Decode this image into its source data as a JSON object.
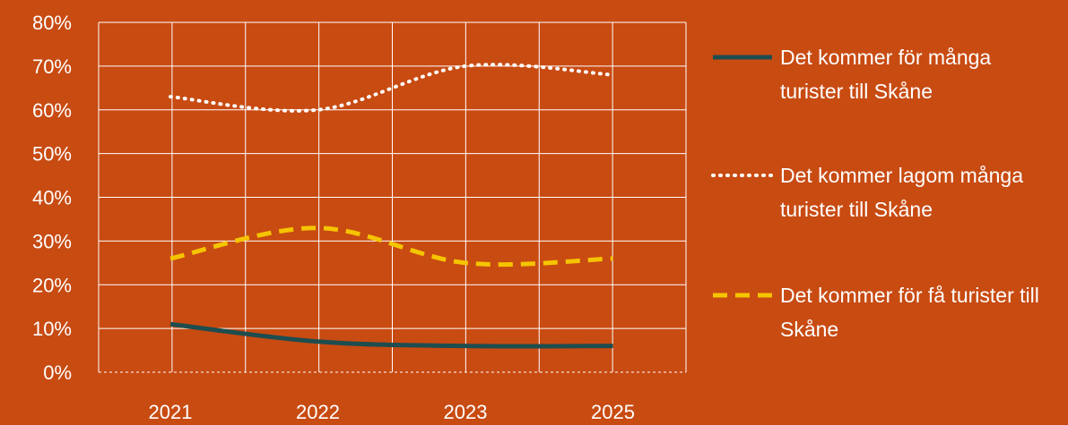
{
  "chart_data": {
    "type": "line",
    "categories": [
      "2021",
      "2022",
      "2023",
      "2025"
    ],
    "series": [
      {
        "name": "Det kommer för många turister till Skåne",
        "values": [
          11,
          7,
          6,
          6
        ],
        "color": "#1e4d4f",
        "style": "solid"
      },
      {
        "name": "Det kommer lagom många turister till Skåne",
        "values": [
          63,
          60,
          70,
          68
        ],
        "color": "#ffffff",
        "style": "dotted"
      },
      {
        "name": "Det kommer för få turister till Skåne",
        "values": [
          26,
          33,
          25,
          26
        ],
        "color": "#f5c400",
        "style": "dashed"
      }
    ],
    "ylim": [
      0,
      80
    ],
    "yticks": [
      "0%",
      "10%",
      "20%",
      "30%",
      "40%",
      "50%",
      "60%",
      "70%",
      "80%"
    ],
    "grid": true,
    "legend_position": "right",
    "title": "",
    "xlabel": "",
    "ylabel": ""
  },
  "colors": {
    "background": "#c84b12",
    "grid": "#ffffff",
    "text": "#ffffff"
  }
}
